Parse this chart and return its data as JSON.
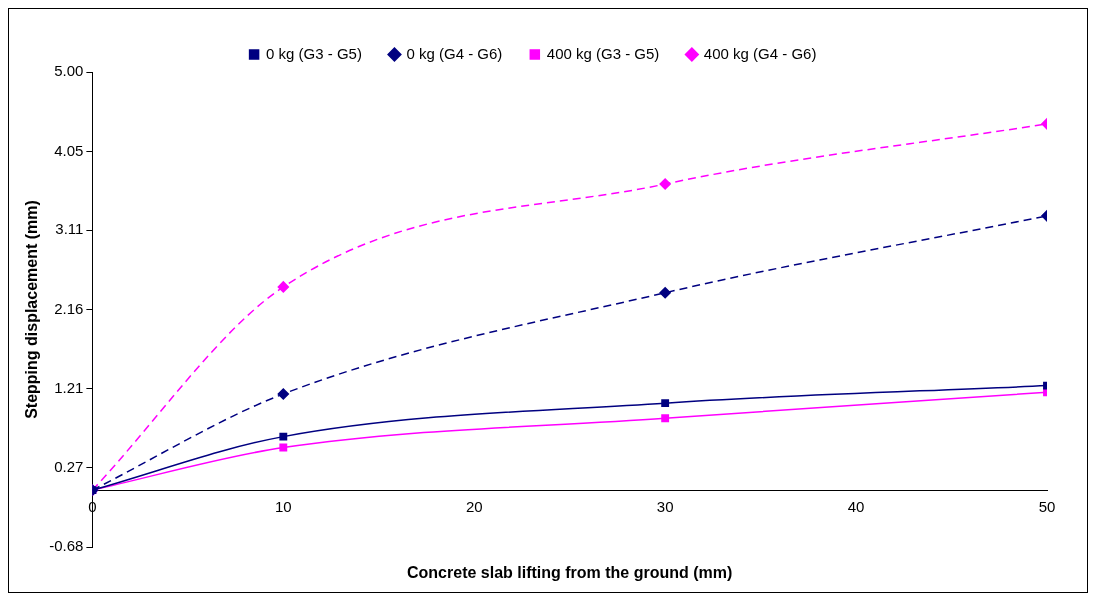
{
  "chart_data": {
    "type": "line",
    "xlabel": "Concrete slab lifting from the ground (mm)",
    "ylabel": "Stepping displacement (mm)",
    "x": [
      0,
      10,
      30,
      50
    ],
    "series": [
      {
        "name": "0 kg (G3 - G5)",
        "color": "#000080",
        "values": [
          0.0,
          0.64,
          1.04,
          1.25
        ],
        "marker": "square",
        "line_style": "solid"
      },
      {
        "name": "0 kg (G4 - G6)",
        "color": "#000080",
        "values": [
          0.0,
          1.15,
          2.36,
          3.28
        ],
        "marker": "diamond",
        "line_style": "dashed"
      },
      {
        "name": "400 kg (G3 - G5)",
        "color": "#ff00ff",
        "values": [
          0.0,
          0.51,
          0.86,
          1.17
        ],
        "marker": "square",
        "line_style": "solid"
      },
      {
        "name": "400 kg (G4 - G6)",
        "color": "#ff00ff",
        "values": [
          0.0,
          2.43,
          3.66,
          4.38
        ],
        "marker": "diamond",
        "line_style": "dashed"
      }
    ],
    "xlim": [
      0,
      50
    ],
    "xticks": [
      0,
      10,
      20,
      30,
      40,
      50
    ],
    "ylim": [
      -0.68,
      5.0
    ],
    "yticks": [
      -0.68,
      0.27,
      1.21,
      2.16,
      3.11,
      4.05,
      {
        "value": 5.0,
        "label": "5.00"
      }
    ],
    "grid": false,
    "legend": "top"
  }
}
